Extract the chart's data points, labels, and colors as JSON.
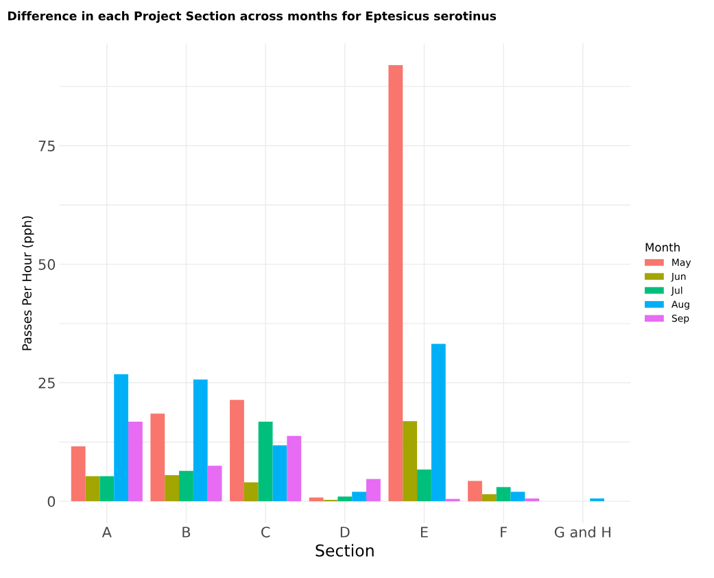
{
  "chart_data": {
    "type": "bar",
    "title": "Difference in each Project Section across months for Eptesicus serotinus",
    "xlabel": "Section",
    "ylabel": "Passes Per Hour (pph)",
    "legend_title": "Month",
    "categories": [
      "A",
      "B",
      "C",
      "D",
      "E",
      "F",
      "G and H"
    ],
    "series": [
      {
        "name": "May",
        "color": "#F8766D",
        "values": [
          11.6,
          18.5,
          21.4,
          0.8,
          92,
          4.3,
          0
        ]
      },
      {
        "name": "Jun",
        "color": "#A3A500",
        "values": [
          5.3,
          5.5,
          4.0,
          0.3,
          16.9,
          1.5,
          0
        ]
      },
      {
        "name": "Jul",
        "color": "#00BF7D",
        "values": [
          5.3,
          6.4,
          16.8,
          1.0,
          6.7,
          3.0,
          0
        ]
      },
      {
        "name": "Aug",
        "color": "#00B0F6",
        "values": [
          26.8,
          25.7,
          11.8,
          2.0,
          33.2,
          2.0,
          0.6
        ]
      },
      {
        "name": "Sep",
        "color": "#E76BF3",
        "values": [
          16.8,
          7.5,
          13.8,
          4.7,
          0.5,
          0.6,
          0
        ]
      }
    ],
    "ylim": [
      -4.6,
      96.6
    ],
    "yticks": [
      0,
      {
        "value": 12.5,
        "label": null
      },
      25,
      {
        "value": 37.5,
        "label": null
      },
      50,
      {
        "value": 62.5,
        "label": null
      },
      75,
      {
        "value": 87.5,
        "label": null
      }
    ],
    "grid": true,
    "legend": "right"
  }
}
